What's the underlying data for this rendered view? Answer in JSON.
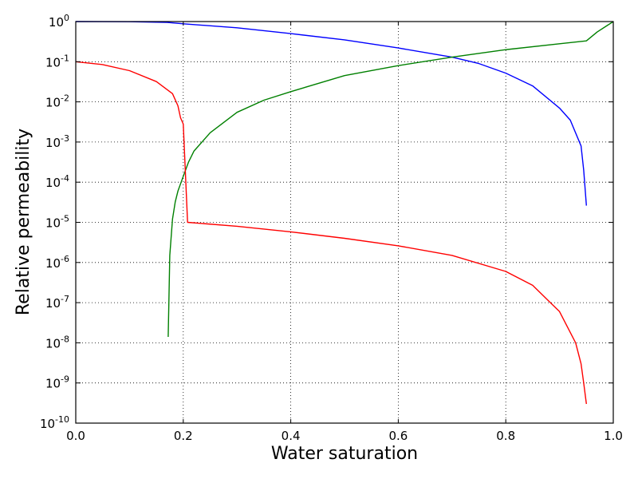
{
  "chart_data": {
    "type": "line",
    "xlabel": "Water saturation",
    "ylabel": "Relative permeability",
    "xlim": [
      0.0,
      1.0
    ],
    "ylim": [
      1e-10,
      1
    ],
    "yscale": "log",
    "grid": true,
    "x_ticks": [
      0.0,
      0.2,
      0.4,
      0.6,
      0.8,
      1.0
    ],
    "x_tick_labels": [
      "0.0",
      "0.2",
      "0.4",
      "0.6",
      "0.8",
      "1.0"
    ],
    "y_ticks": [
      {
        "value": 1,
        "base": "10",
        "exp": "0"
      },
      {
        "value": 0.1,
        "base": "10",
        "exp": "-1"
      },
      {
        "value": 0.01,
        "base": "10",
        "exp": "-2"
      },
      {
        "value": 0.001,
        "base": "10",
        "exp": "-3"
      },
      {
        "value": 0.0001,
        "base": "10",
        "exp": "-4"
      },
      {
        "value": 1e-05,
        "base": "10",
        "exp": "-5"
      },
      {
        "value": 1e-06,
        "base": "10",
        "exp": "-6"
      },
      {
        "value": 1e-07,
        "base": "10",
        "exp": "-7"
      },
      {
        "value": 1e-08,
        "base": "10",
        "exp": "-8"
      },
      {
        "value": 1e-09,
        "base": "10",
        "exp": "-9"
      },
      {
        "value": 1e-10,
        "base": "10",
        "exp": "-10"
      }
    ],
    "series": [
      {
        "color": "#0000ff",
        "x": [
          0.0,
          0.1,
          0.17,
          0.2,
          0.3,
          0.4,
          0.5,
          0.6,
          0.7,
          0.75,
          0.8,
          0.85,
          0.9,
          0.92,
          0.94,
          0.945,
          0.95
        ],
        "y": [
          1.0,
          0.99,
          0.95,
          0.88,
          0.7,
          0.5,
          0.35,
          0.22,
          0.13,
          0.09,
          0.052,
          0.025,
          0.007,
          0.0035,
          0.0008,
          0.0002,
          2.6e-05
        ]
      },
      {
        "color": "#008000",
        "x": [
          0.172,
          0.175,
          0.18,
          0.185,
          0.19,
          0.2,
          0.21,
          0.22,
          0.25,
          0.3,
          0.35,
          0.4,
          0.5,
          0.6,
          0.7,
          0.8,
          0.9,
          0.95,
          0.97,
          1.0
        ],
        "y": [
          1.4e-08,
          1.5e-06,
          1.2e-05,
          3.2e-05,
          6e-05,
          0.00014,
          0.00032,
          0.0006,
          0.0017,
          0.0055,
          0.011,
          0.018,
          0.045,
          0.08,
          0.13,
          0.2,
          0.28,
          0.33,
          0.55,
          1.0
        ]
      },
      {
        "color": "#ff0000",
        "x": [
          0.0,
          0.05,
          0.1,
          0.15,
          0.18,
          0.19,
          0.195,
          0.2,
          0.208,
          0.3,
          0.4,
          0.5,
          0.6,
          0.7,
          0.8,
          0.85,
          0.9,
          0.93,
          0.94,
          0.945,
          0.95
        ],
        "y": [
          0.1,
          0.085,
          0.06,
          0.032,
          0.016,
          0.008,
          0.004,
          0.0028,
          1e-05,
          8e-06,
          5.8e-06,
          4e-06,
          2.6e-06,
          1.5e-06,
          6e-07,
          2.7e-07,
          6e-08,
          1e-08,
          3e-09,
          1e-09,
          3e-10
        ]
      }
    ]
  }
}
